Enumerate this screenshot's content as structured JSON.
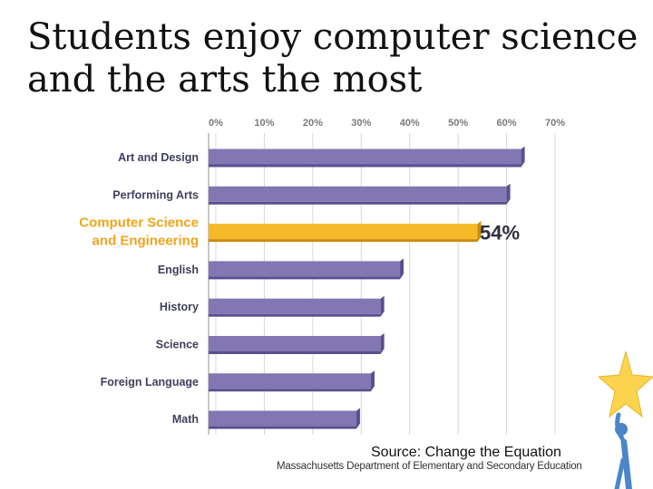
{
  "slide": {
    "title_line1": "Students enjoy computer science",
    "title_line2": "and the arts the most",
    "source": "Source: Change the Equation",
    "attribution": "Massachusetts Department of Elementary and Secondary Education"
  },
  "chart_data": {
    "type": "bar",
    "orientation": "horizontal",
    "categories": [
      "Art and Design",
      "Performing Arts",
      "Computer Science and Engineering",
      "English",
      "History",
      "Science",
      "Foreign Language",
      "Math"
    ],
    "category_lines": [
      [
        "Art and Design"
      ],
      [
        "Performing Arts"
      ],
      [
        "Computer Science",
        "and Engineering"
      ],
      [
        "English"
      ],
      [
        "History"
      ],
      [
        "Science"
      ],
      [
        "Foreign Language"
      ],
      [
        "Math"
      ]
    ],
    "values": [
      63,
      60,
      54,
      38,
      34,
      34,
      32,
      29
    ],
    "highlight_index": 2,
    "highlight_label": "54%",
    "xlim": [
      0,
      70
    ],
    "xticks": [
      "0%",
      "10%",
      "20%",
      "30%",
      "40%",
      "50%",
      "60%",
      "70%"
    ],
    "grid": true,
    "colors": {
      "bar": "#8277b3",
      "bar_dark": "#5a4f8e",
      "highlight": "#f6b928",
      "highlight_dark": "#c98d0f",
      "highlight_text": "#f0a51c",
      "label": "#3f3f5e",
      "tick": "#7a7a7a",
      "grid": "#d8d8d8"
    }
  },
  "decor": {
    "mascot_star_color": "#fcd34d",
    "mascot_figure_color": "#4a86c8"
  }
}
